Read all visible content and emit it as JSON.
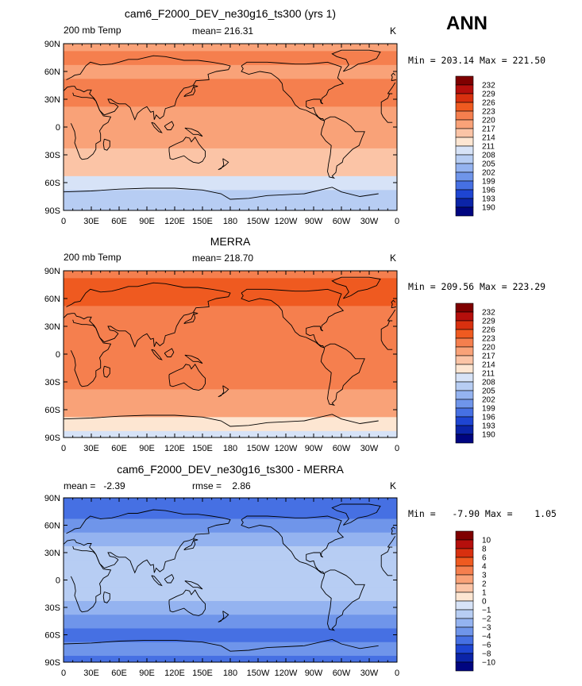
{
  "figure": {
    "season_label": "ANN"
  },
  "chart_data": [
    {
      "type": "heatmap",
      "title": "cam6_F2000_DEV_ne30g16_ts300 (yrs 1)",
      "left_label": "200 mb Temp",
      "center_label": "mean= 216.31",
      "units": "K",
      "minmax_label": "Min = 203.14 Max = 221.50",
      "x": {
        "ticks": [
          "0",
          "30E",
          "60E",
          "90E",
          "120E",
          "150E",
          "180",
          "150W",
          "120W",
          "90W",
          "60W",
          "30W",
          "0"
        ]
      },
      "y": {
        "ticks": [
          "90S",
          "60S",
          "30S",
          "0",
          "30N",
          "60N",
          "90N"
        ]
      },
      "colorbar": {
        "levels": [
          "232",
          "229",
          "226",
          "223",
          "220",
          "217",
          "214",
          "211",
          "208",
          "205",
          "202",
          "199",
          "196",
          "193",
          "190"
        ],
        "colors": [
          "#7f0000",
          "#b50f0c",
          "#d8300f",
          "#ef5a20",
          "#f57f4e",
          "#f9a278",
          "#fbc4a6",
          "#fde6d2",
          "#d7e3f7",
          "#b7cdf3",
          "#94b3f0",
          "#6f95ea",
          "#4670e3",
          "#1e45d2",
          "#0b24a8",
          "#000580"
        ]
      },
      "fields": {
        "lat": [
          "90S",
          "75S",
          "60S",
          "45S",
          "30S",
          "15S",
          "0",
          "15N",
          "30N",
          "45N",
          "60N",
          "75N",
          "90N"
        ],
        "zonal_band_levels": [
          9,
          9,
          8,
          6,
          6,
          5,
          5,
          5,
          4,
          4,
          5,
          4,
          5
        ]
      }
    },
    {
      "type": "heatmap",
      "title": "MERRA",
      "left_label": "200 mb Temp",
      "center_label": "mean= 218.70",
      "units": "K",
      "minmax_label": "Min = 209.56 Max = 223.29",
      "x": {
        "ticks": [
          "0",
          "30E",
          "60E",
          "90E",
          "120E",
          "150E",
          "180",
          "150W",
          "120W",
          "90W",
          "60W",
          "30W",
          "0"
        ]
      },
      "y": {
        "ticks": [
          "90S",
          "60S",
          "30S",
          "0",
          "30N",
          "60N",
          "90N"
        ]
      },
      "colorbar": {
        "levels": [
          "232",
          "229",
          "226",
          "223",
          "220",
          "217",
          "214",
          "211",
          "208",
          "205",
          "202",
          "199",
          "196",
          "193",
          "190"
        ],
        "colors": [
          "#7f0000",
          "#b50f0c",
          "#d8300f",
          "#ef5a20",
          "#f57f4e",
          "#f9a278",
          "#fbc4a6",
          "#fde6d2",
          "#d7e3f7",
          "#b7cdf3",
          "#94b3f0",
          "#6f95ea",
          "#4670e3",
          "#1e45d2",
          "#0b24a8",
          "#000580"
        ]
      },
      "fields": {
        "lat": [
          "90S",
          "75S",
          "60S",
          "45S",
          "30S",
          "15S",
          "0",
          "15N",
          "30N",
          "45N",
          "60N",
          "75N",
          "90N"
        ],
        "zonal_band_levels": [
          8,
          7,
          5,
          5,
          4,
          4,
          4,
          4,
          4,
          4,
          3,
          3,
          4
        ]
      }
    },
    {
      "type": "heatmap",
      "title": "cam6_F2000_DEV_ne30g16_ts300 - MERRA",
      "left_label": "mean =   -2.39",
      "center_label": "rmse =    2.86",
      "units": "K",
      "minmax_label": "Min =   -7.90 Max =    1.05",
      "x": {
        "ticks": [
          "0",
          "30E",
          "60E",
          "90E",
          "120E",
          "150E",
          "180",
          "150W",
          "120W",
          "90W",
          "60W",
          "30W",
          "0"
        ]
      },
      "y": {
        "ticks": [
          "90S",
          "60S",
          "30S",
          "0",
          "30N",
          "60N",
          "90N"
        ]
      },
      "colorbar": {
        "levels": [
          "10",
          "8",
          "6",
          "4",
          "3",
          "2",
          "1",
          "0",
          "−1",
          "−2",
          "−3",
          "−4",
          "−6",
          "−8",
          "−10"
        ],
        "colors": [
          "#7f0000",
          "#b50f0c",
          "#d8300f",
          "#ef5a20",
          "#f57f4e",
          "#f9a278",
          "#fbc4a6",
          "#fde6d2",
          "#d7e3f7",
          "#b7cdf3",
          "#94b3f0",
          "#6f95ea",
          "#4670e3",
          "#1e45d2",
          "#0b24a8",
          "#000580"
        ]
      },
      "fields": {
        "lat": [
          "90S",
          "75S",
          "60S",
          "45S",
          "30S",
          "15S",
          "0",
          "15N",
          "30N",
          "45N",
          "60N",
          "75N",
          "90N"
        ],
        "zonal_band_levels": [
          12,
          11,
          12,
          11,
          10,
          9,
          9,
          9,
          9,
          10,
          11,
          12,
          12
        ]
      }
    }
  ]
}
